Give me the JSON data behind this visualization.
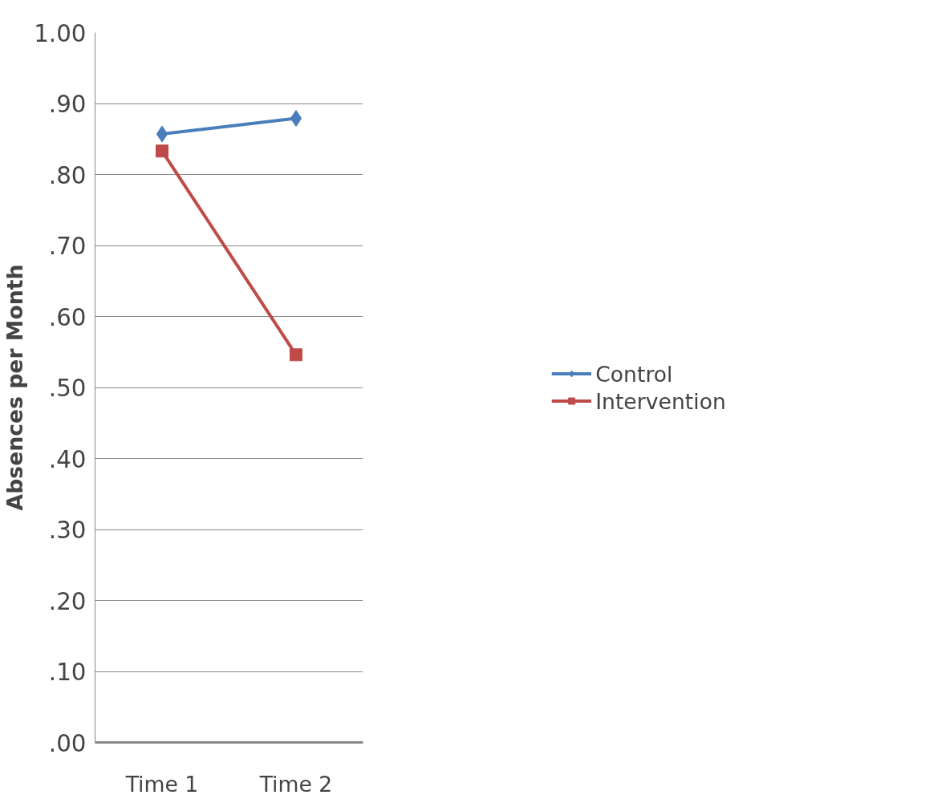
{
  "chart_data": {
    "type": "line",
    "ylabel": "Absences per Month",
    "categories": [
      "Time 1",
      "Time 2"
    ],
    "series": [
      {
        "name": "Control",
        "color": "#4a7ebb",
        "values": [
          0.857,
          0.879
        ],
        "marker": "diamond"
      },
      {
        "name": "Intervention",
        "color": "#be4b48",
        "values": [
          0.833,
          0.546
        ],
        "marker": "square"
      }
    ],
    "ylim": [
      0,
      1
    ],
    "yticks": [
      {
        "value": 0,
        "label": ".00"
      },
      {
        "value": 0.1,
        "label": ".10"
      },
      {
        "value": 0.2,
        "label": ".20"
      },
      {
        "value": 0.3,
        "label": ".30"
      },
      {
        "value": 0.4,
        "label": ".40"
      },
      {
        "value": 0.5,
        "label": ".50"
      },
      {
        "value": 0.6,
        "label": ".60"
      },
      {
        "value": 0.7,
        "label": ".70"
      },
      {
        "value": 0.8,
        "label": ".80"
      },
      {
        "value": 0.9,
        "label": ".90"
      },
      {
        "value": 1,
        "label": "1.00"
      }
    ],
    "grid": "y",
    "legend": "right",
    "line_style": "solid"
  }
}
